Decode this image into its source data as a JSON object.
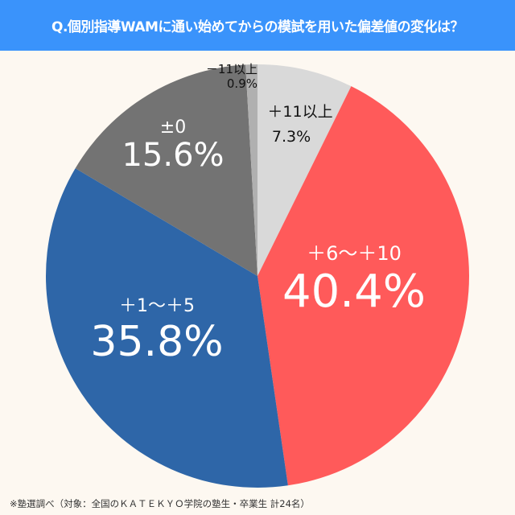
{
  "header": {
    "title": "Q.個別指導WAMに通い始めてからの模試を用いた偏差値の変化は？"
  },
  "footnote": "※塾選調べ（対象：全国のＫＡＴＥＫＹＯ学院の塾生・卒業生 計24名）",
  "colors": {
    "header_bg": "#3a93fb",
    "page_bg": "#fdf8f1"
  },
  "chart_data": {
    "type": "pie",
    "title": "Q.個別指導WAMに通い始めてからの模試を用いた偏差値の変化は？",
    "start_angle": "12 o'clock",
    "direction": "clockwise",
    "slices": [
      {
        "label": "＋11以上",
        "value": 7.3,
        "display": "7.3%",
        "color": "#d9d9d9"
      },
      {
        "label": "＋6〜＋10",
        "value": 40.4,
        "display": "40.4%",
        "color": "#ff5a5a"
      },
      {
        "label": "＋1〜＋5",
        "value": 35.8,
        "display": "35.8%",
        "color": "#2e66a8"
      },
      {
        "label": "±0",
        "value": 15.6,
        "display": "15.6%",
        "color": "#737373"
      },
      {
        "label": "－11以上",
        "value": 0.9,
        "display": "0.9%",
        "color": "#b0b0b0"
      }
    ]
  }
}
